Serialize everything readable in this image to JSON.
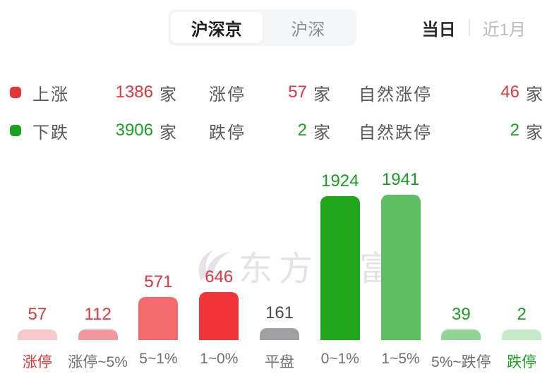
{
  "header": {
    "tabs": [
      {
        "label": "沪深京",
        "selected": true
      },
      {
        "label": "沪深",
        "selected": false
      }
    ],
    "period_options": [
      {
        "label": "当日",
        "selected": true
      },
      {
        "label": "近1月",
        "selected": false
      }
    ]
  },
  "stats": {
    "rows": [
      {
        "legend_color": "#e83338",
        "label": "上涨",
        "value": "1386",
        "unit": "家",
        "label2": "涨停",
        "value2": "57",
        "unit2": "家",
        "label3": "自然涨停",
        "value3": "46",
        "unit3": "家",
        "value_color": "#e83338"
      },
      {
        "legend_color": "#17a31d",
        "label": "下跌",
        "value": "3906",
        "unit": "家",
        "label2": "跌停",
        "value2": "2",
        "unit2": "家",
        "label3": "自然跌停",
        "value3": "2",
        "unit3": "家",
        "value_color": "#17a31d"
      }
    ]
  },
  "watermark": {
    "text": "东方财富"
  },
  "chart_data": {
    "type": "bar",
    "title": "",
    "categories": [
      "涨停",
      "涨停~5%",
      "5~1%",
      "1~0%",
      "平盘",
      "0~1%",
      "1~5%",
      "5%~跌停",
      "跌停"
    ],
    "values": [
      57,
      112,
      571,
      646,
      161,
      1924,
      1941,
      39,
      2
    ],
    "bar_colors": [
      "#f7c9cb",
      "#f2989d",
      "#f4696e",
      "#f1353a",
      "#a1a1a3",
      "#20a71c",
      "#5dbf61",
      "#90d593",
      "#c6e9c6"
    ],
    "value_label_colors": [
      "#e83338",
      "#e83338",
      "#e83338",
      "#e83338",
      "#4a4a4a",
      "#17a31d",
      "#17a31d",
      "#17a31d",
      "#17a31d"
    ],
    "category_label_colors": [
      "#e83338",
      "#707070",
      "#707070",
      "#707070",
      "#707070",
      "#707070",
      "#707070",
      "#707070",
      "#17a31d"
    ],
    "xlabel": "",
    "ylabel": "",
    "ylim": [
      0,
      2000
    ],
    "grid": false,
    "legend_position": "none",
    "value_labels_shown": true
  },
  "colors": {
    "up": "#e83338",
    "down": "#17a31d",
    "neutral": "#4a4a4a",
    "watermark": "#e4e4e8"
  }
}
